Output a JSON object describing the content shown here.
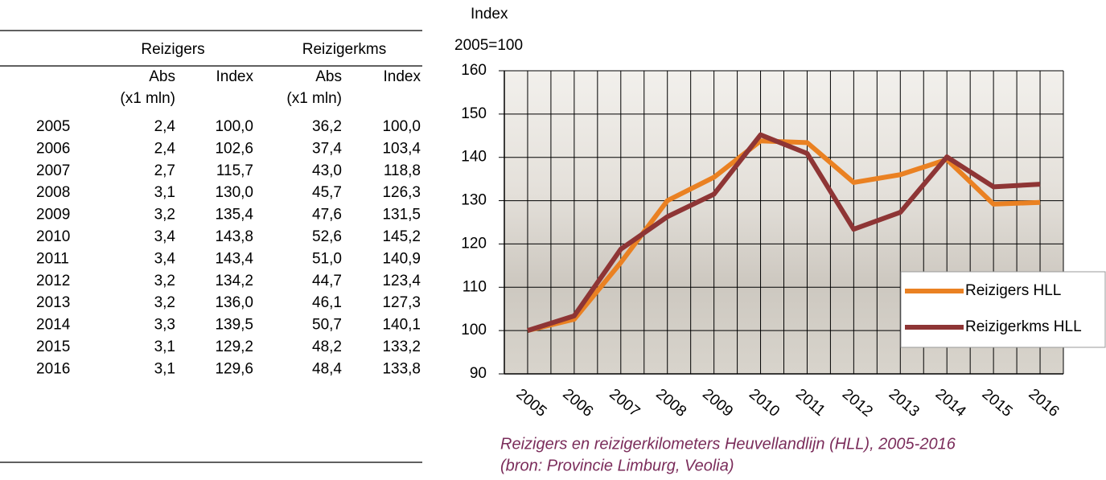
{
  "table": {
    "group_headers": [
      "Reizigers",
      "Reizigerkms"
    ],
    "sub_headers": [
      [
        "Abs",
        "(x1 mln)"
      ],
      [
        "Index"
      ],
      [
        "Abs",
        "(x1 mln)"
      ],
      [
        "Index"
      ]
    ],
    "rows": [
      [
        "2005",
        "2,4",
        "100,0",
        "36,2",
        "100,0"
      ],
      [
        "2006",
        "2,4",
        "102,6",
        "37,4",
        "103,4"
      ],
      [
        "2007",
        "2,7",
        "115,7",
        "43,0",
        "118,8"
      ],
      [
        "2008",
        "3,1",
        "130,0",
        "45,7",
        "126,3"
      ],
      [
        "2009",
        "3,2",
        "135,4",
        "47,6",
        "131,5"
      ],
      [
        "2010",
        "3,4",
        "143,8",
        "52,6",
        "145,2"
      ],
      [
        "2011",
        "3,4",
        "143,4",
        "51,0",
        "140,9"
      ],
      [
        "2012",
        "3,2",
        "134,2",
        "44,7",
        "123,4"
      ],
      [
        "2013",
        "3,2",
        "136,0",
        "46,1",
        "127,3"
      ],
      [
        "2014",
        "3,3",
        "139,5",
        "50,7",
        "140,1"
      ],
      [
        "2015",
        "3,1",
        "129,2",
        "48,2",
        "133,2"
      ],
      [
        "2016",
        "3,1",
        "129,6",
        "48,4",
        "133,8"
      ]
    ]
  },
  "chart_data": {
    "type": "line",
    "ylabel": [
      "Index",
      "2005=100"
    ],
    "caption": [
      "Reizigers en reizigerkilometers Heuvellandlijn (HLL), 2005-2016",
      "(bron: Provincie Limburg, Veolia)"
    ],
    "categories": [
      "2005",
      "2006",
      "2007",
      "2008",
      "2009",
      "2010",
      "2011",
      "2012",
      "2013",
      "2014",
      "2015",
      "2016"
    ],
    "series": [
      {
        "name": "Reizigers HLL",
        "color": "#ea8122",
        "values": [
          100,
          102.6,
          115.7,
          130,
          135.4,
          143.8,
          143.4,
          134.2,
          136,
          139.5,
          129.2,
          129.6
        ]
      },
      {
        "name": "Reizigerkms HLL",
        "color": "#8e3535",
        "values": [
          100,
          103.4,
          118.8,
          126.3,
          131.5,
          145.2,
          140.9,
          123.4,
          127.3,
          140.1,
          133.2,
          133.8
        ]
      }
    ],
    "ylim": [
      90,
      160
    ],
    "yticks": [
      90,
      100,
      110,
      120,
      130,
      140,
      150,
      160
    ],
    "grid": true,
    "legend": "right"
  }
}
